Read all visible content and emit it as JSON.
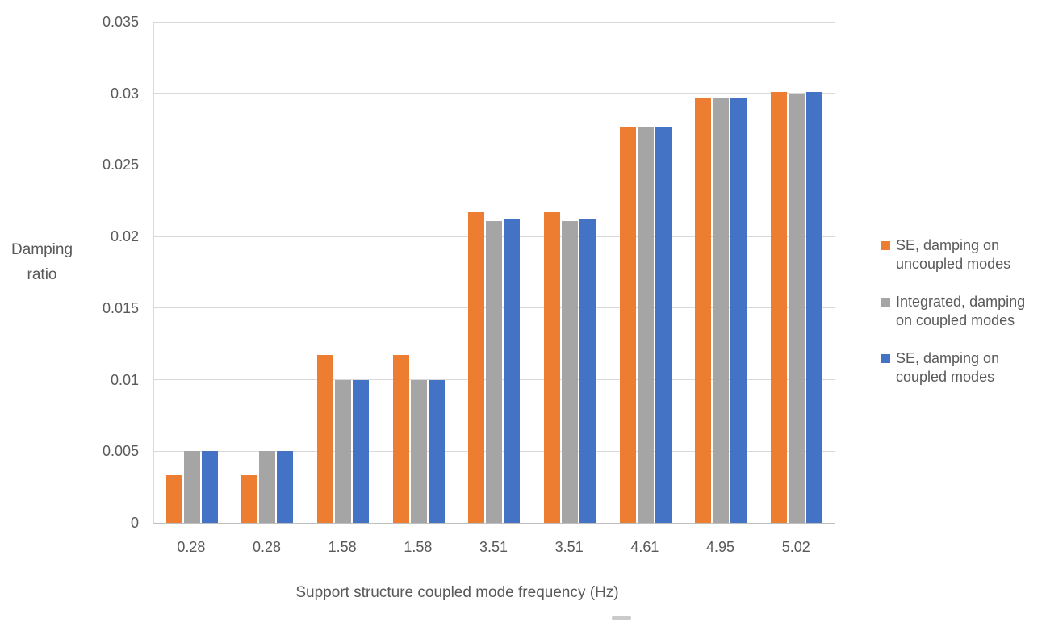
{
  "chart_data": {
    "type": "bar",
    "title": "",
    "xlabel": "Support structure coupled mode frequency (Hz)",
    "ylabel": "Damping ratio",
    "categories": [
      "0.28",
      "0.28",
      "1.58",
      "1.58",
      "3.51",
      "3.51",
      "4.61",
      "4.95",
      "5.02"
    ],
    "series": [
      {
        "name": "SE, damping on uncoupled modes",
        "name_lines": [
          "SE, damping on",
          "uncoupled modes"
        ],
        "color": "#ED7D31",
        "values": [
          0.0033,
          0.0033,
          0.0117,
          0.0117,
          0.0217,
          0.0217,
          0.0276,
          0.0297,
          0.0301
        ]
      },
      {
        "name": "Integrated, damping on coupled modes",
        "name_lines": [
          "Integrated, damping",
          "on coupled modes"
        ],
        "color": "#A5A5A5",
        "values": [
          0.005,
          0.005,
          0.01,
          0.01,
          0.0211,
          0.0211,
          0.0277,
          0.0297,
          0.03
        ]
      },
      {
        "name": "SE, damping on coupled modes",
        "name_lines": [
          "SE, damping on",
          "coupled modes"
        ],
        "color": "#4472C4",
        "values": [
          0.005,
          0.005,
          0.01,
          0.01,
          0.0212,
          0.0212,
          0.0277,
          0.0297,
          0.0301
        ]
      }
    ],
    "ylim": [
      0,
      0.035
    ],
    "y_ticks": [
      "0",
      "0.005",
      "0.01",
      "0.015",
      "0.02",
      "0.025",
      "0.03",
      "0.035"
    ],
    "y_tick_values": [
      0,
      0.005,
      0.01,
      0.015,
      0.02,
      0.025,
      0.03,
      0.035
    ],
    "grid": true,
    "legend_position": "right",
    "colors": {
      "gridline": "#D9D9D9",
      "axis_line": "#BFBFBF",
      "text": "#595959"
    }
  }
}
